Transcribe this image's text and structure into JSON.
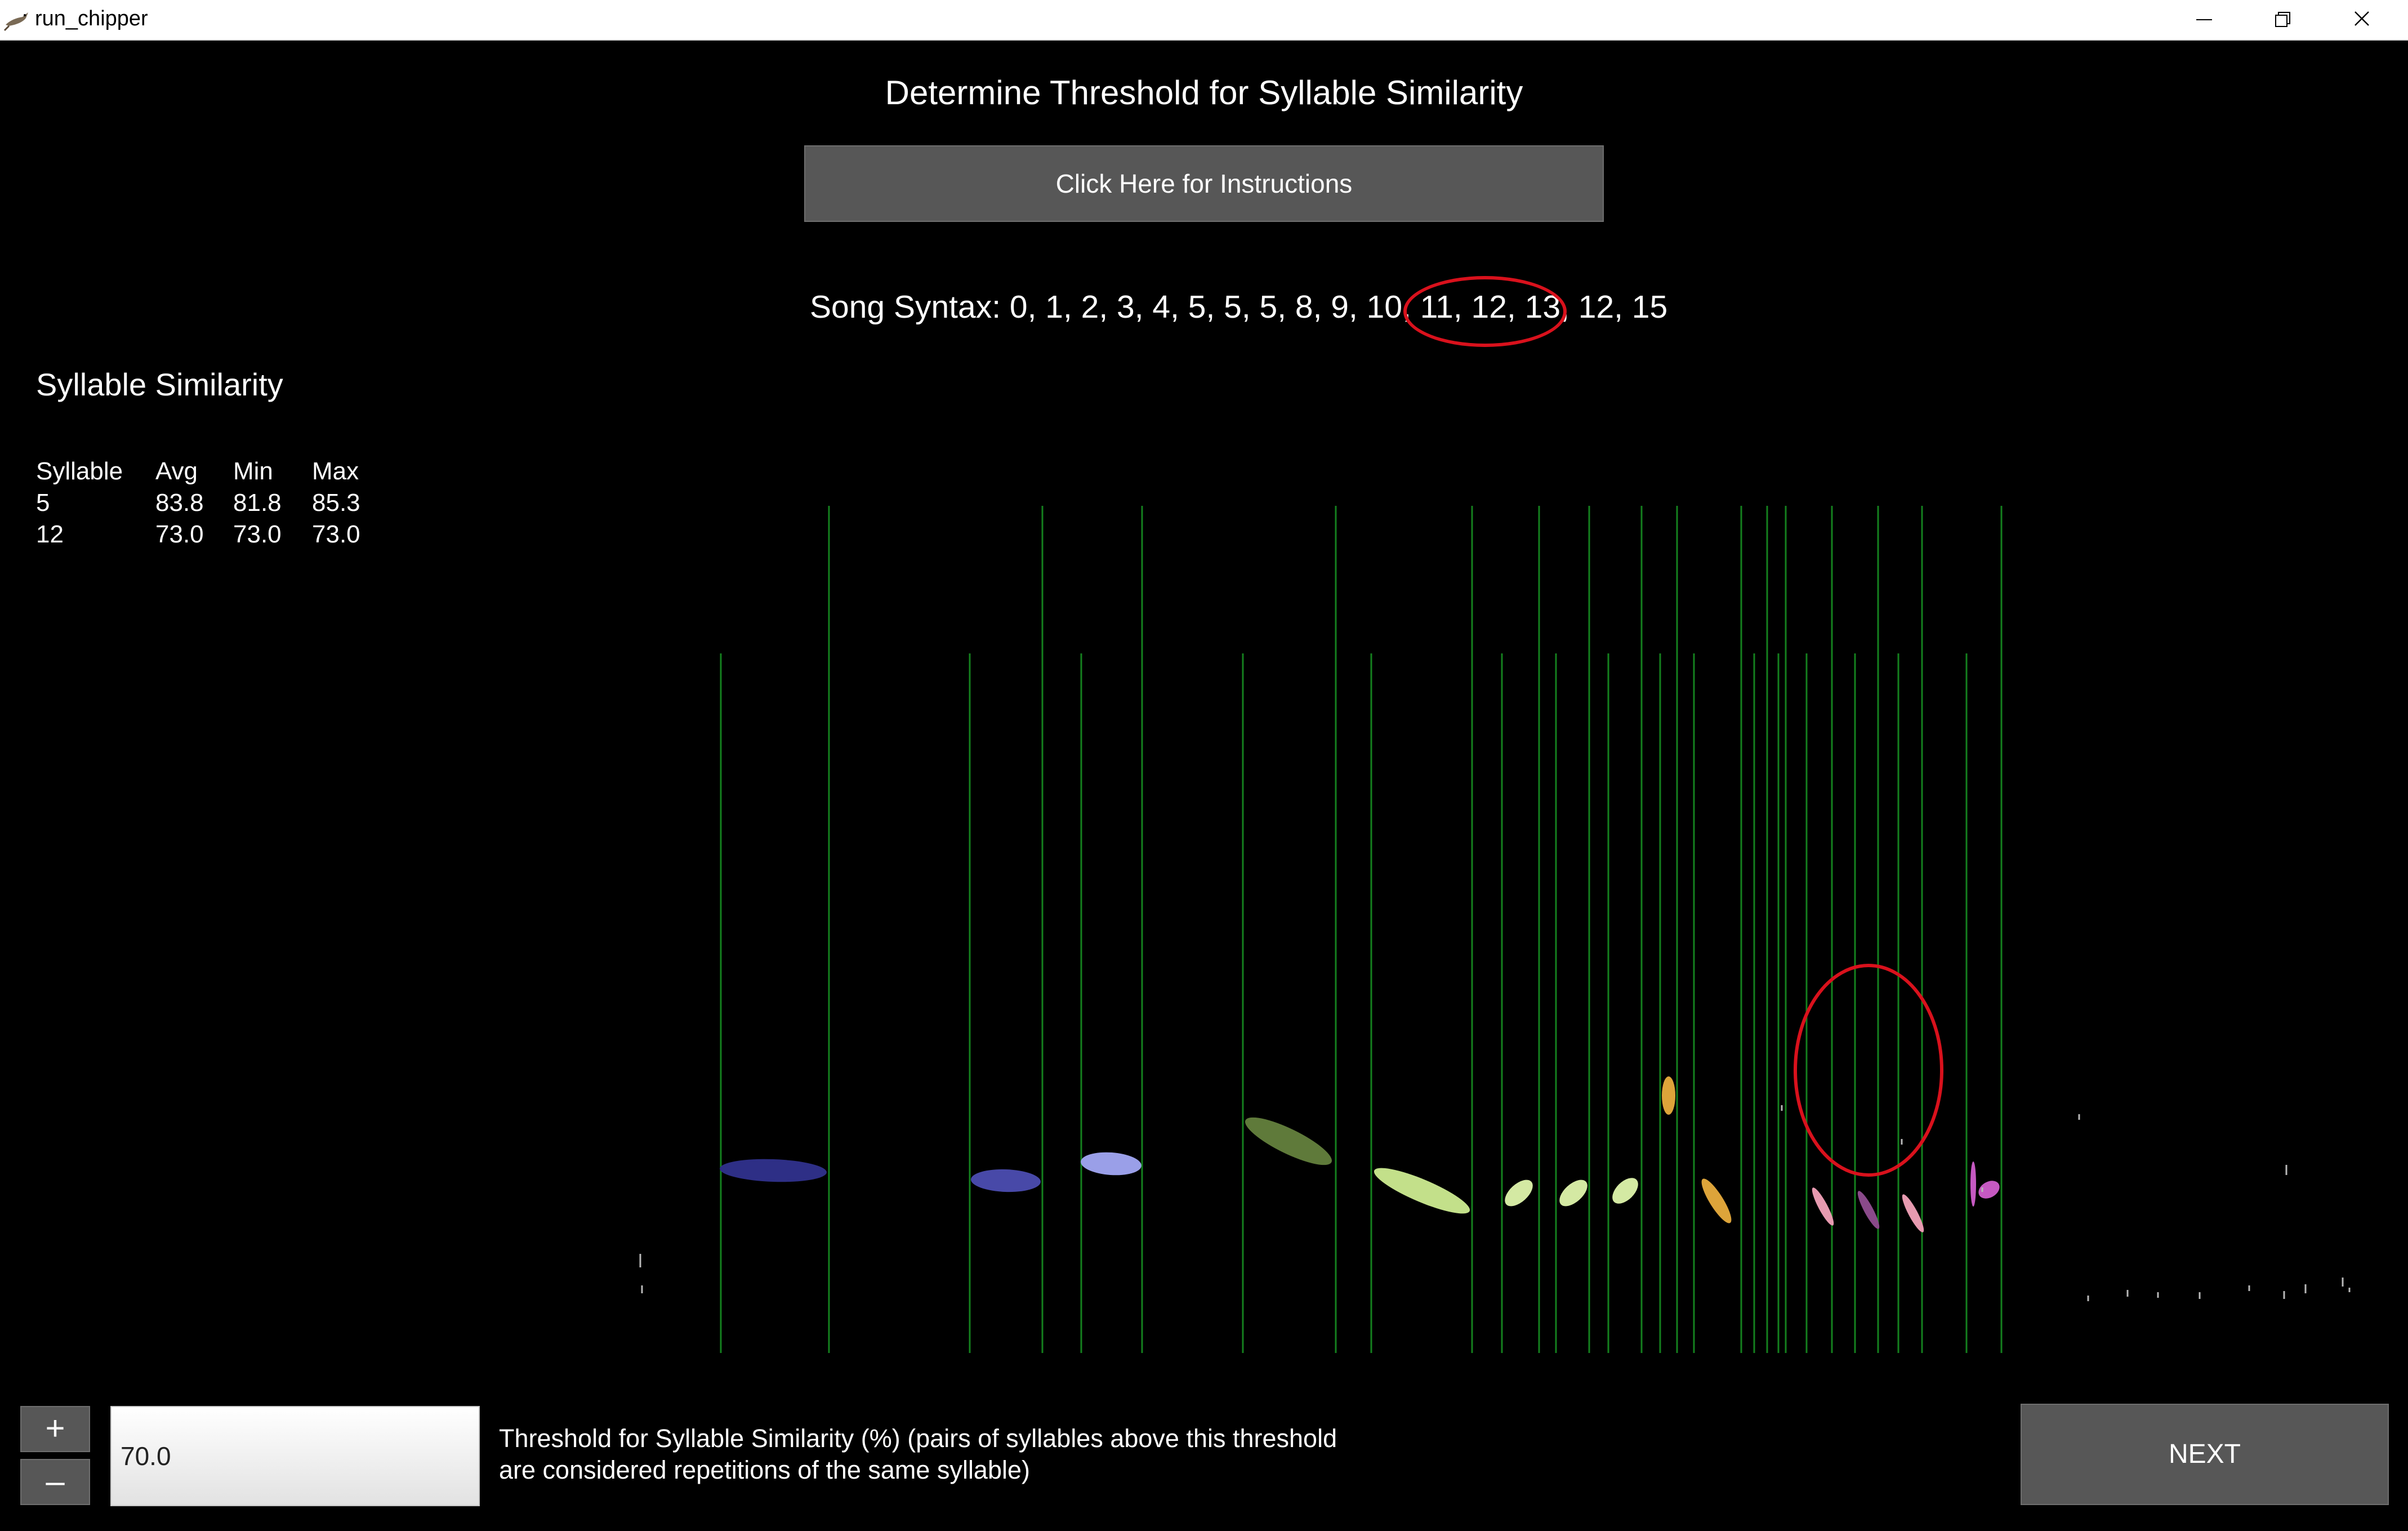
{
  "window": {
    "title": "run_chipper",
    "icon": "bird-icon",
    "controls": [
      "minimize-icon",
      "restore-icon",
      "close-icon"
    ]
  },
  "heading": "Determine Threshold for Syllable Similarity",
  "instructions_button": "Click Here for Instructions",
  "syntax": {
    "label": "Song Syntax: 0, 1, 2, 3, 4, 5, 5, 5, 8, 9, 10, 11, 12, 13, 12, 15",
    "highlight_color": "#d9111c"
  },
  "similarity": {
    "title": "Syllable Similarity",
    "columns": [
      "Syllable",
      "Avg",
      "Min",
      "Max"
    ],
    "rows": [
      [
        "5",
        "83.8",
        "81.8",
        "85.3"
      ],
      [
        "12",
        "73.0",
        "73.0",
        "73.0"
      ]
    ]
  },
  "spectrogram": {
    "background": "#000000",
    "boundary_color": "#14801e",
    "highlight_color": "#d9111c",
    "syllable_colors": [
      "#2e2f86",
      "#4849a8",
      "#9a9fe8",
      "#5f7a3a",
      "#c3e08a",
      "#d4e9a3",
      "#dda43a",
      "#e79ab0",
      "#8a4a8a",
      "#c659c2"
    ]
  },
  "controls": {
    "increment_label": "+",
    "decrement_label": "–",
    "threshold_value": "70.0",
    "threshold_label": "Threshold for Syllable Similarity (%) (pairs of syllables above this threshold are considered repetitions of the same syllable)",
    "next_label": "NEXT"
  }
}
